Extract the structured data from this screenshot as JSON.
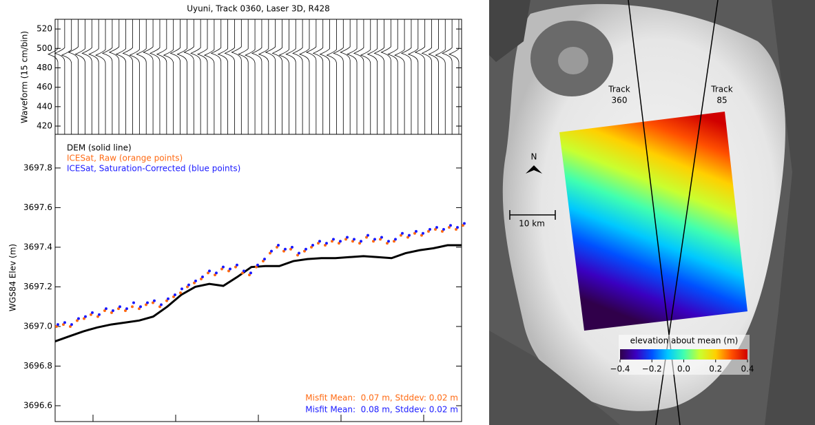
{
  "chart_data": [
    {
      "type": "waveform",
      "title": "Uyuni, Track 0360, Laser 3D, R428",
      "y_label": "Waveform (15 cm/bin)",
      "ylim": [
        411.5,
        530
      ],
      "yticks": [
        420,
        440,
        460,
        480,
        500,
        520
      ],
      "color": "#000000",
      "values": [
        494,
        495,
        493,
        496,
        494,
        495,
        494,
        493,
        495,
        496,
        494,
        495,
        493,
        494,
        496,
        495,
        494,
        493,
        495,
        494,
        496,
        495,
        494,
        493,
        495,
        494,
        495,
        496,
        494,
        493,
        495,
        494,
        496,
        495,
        493,
        494,
        495,
        494,
        496,
        495,
        494,
        493,
        495,
        496,
        494,
        495,
        493,
        494,
        495,
        496,
        494,
        493,
        495,
        494,
        496,
        495,
        494,
        493,
        495,
        494
      ]
    },
    {
      "type": "line",
      "y_label": "WGS84 Elev (m)",
      "ylim": [
        3696.52,
        3697.97
      ],
      "yticks": [
        3696.6,
        3696.8,
        {
          "value": 3697.0,
          "label": "3697.0"
        },
        3697.2,
        3697.4,
        3697.6,
        3697.8
      ],
      "series": [
        {
          "name": "DEM (solid line)",
          "color": "#000000",
          "mode": "line",
          "values": [
            3696.925,
            3696.95,
            3696.975,
            3696.995,
            3697.01,
            3697.02,
            3697.03,
            3697.05,
            3697.1,
            3697.16,
            3697.2,
            3697.215,
            3697.205,
            3697.25,
            3697.3,
            3697.305,
            3697.305,
            3697.33,
            3697.34,
            3697.345,
            3697.345,
            3697.35,
            3697.355,
            3697.35,
            3697.345,
            3697.37,
            3697.385,
            3697.395,
            3697.41,
            3697.41
          ]
        },
        {
          "name": "ICESat, Raw (orange points)",
          "color": "#ff6a13",
          "mode": "points",
          "values": [
            3697.0,
            3697.01,
            3697.0,
            3697.03,
            3697.04,
            3697.06,
            3697.05,
            3697.08,
            3697.07,
            3697.09,
            3697.08,
            3697.1,
            3697.09,
            3697.11,
            3697.12,
            3697.1,
            3697.13,
            3697.15,
            3697.17,
            3697.2,
            3697.22,
            3697.24,
            3697.27,
            3697.26,
            3697.29,
            3697.28,
            3697.3,
            3697.27,
            3697.26,
            3697.3,
            3697.33,
            3697.37,
            3697.4,
            3697.38,
            3697.39,
            3697.36,
            3697.38,
            3697.4,
            3697.42,
            3697.41,
            3697.43,
            3697.42,
            3697.44,
            3697.43,
            3697.42,
            3697.45,
            3697.43,
            3697.44,
            3697.42,
            3697.43,
            3697.46,
            3697.45,
            3697.47,
            3697.46,
            3697.48,
            3697.49,
            3697.48,
            3697.5,
            3697.49,
            3697.51
          ]
        },
        {
          "name": "ICESat, Saturation-Corrected (blue points)",
          "color": "#1a1aff",
          "mode": "points",
          "values": [
            3697.01,
            3697.02,
            3697.01,
            3697.04,
            3697.05,
            3697.07,
            3697.06,
            3697.09,
            3697.08,
            3697.1,
            3697.09,
            3697.12,
            3697.1,
            3697.12,
            3697.13,
            3697.11,
            3697.14,
            3697.16,
            3697.19,
            3697.21,
            3697.23,
            3697.25,
            3697.28,
            3697.27,
            3697.3,
            3697.29,
            3697.31,
            3697.28,
            3697.27,
            3697.31,
            3697.34,
            3697.38,
            3697.41,
            3697.39,
            3697.4,
            3697.37,
            3697.39,
            3697.41,
            3697.43,
            3697.42,
            3697.44,
            3697.43,
            3697.45,
            3697.44,
            3697.43,
            3697.46,
            3697.44,
            3697.45,
            3697.43,
            3697.44,
            3697.47,
            3697.46,
            3697.48,
            3697.47,
            3697.49,
            3697.5,
            3697.49,
            3697.51,
            3697.5,
            3697.52
          ]
        }
      ],
      "annotations": [
        {
          "text": "Misfit Mean:  0.07 m, Stddev: 0.02 m",
          "color": "#ff6a13"
        },
        {
          "text": "Misfit Mean:  0.08 m, Stddev: 0.02 m",
          "color": "#1a1aff"
        }
      ]
    }
  ],
  "map": {
    "tracks": [
      {
        "label": "Track",
        "number": "360"
      },
      {
        "label": "Track",
        "number": "85"
      }
    ],
    "north": "N",
    "scale_bar": "10 km",
    "colorbar": {
      "label": "elevation about mean (m)",
      "colors": [
        "#30004a",
        "#3a00c0",
        "#0050ff",
        "#00c8ff",
        "#40ffb0",
        "#c8ff30",
        "#ffd000",
        "#ff5000",
        "#d00000"
      ],
      "ticks": [
        {
          "value": -0.4,
          "label": "−0.4"
        },
        {
          "value": -0.2,
          "label": "−0.2"
        },
        {
          "value": 0.0,
          "label": "0.0"
        },
        0.2,
        0.4
      ],
      "lim": [
        -0.4,
        0.4
      ]
    }
  }
}
